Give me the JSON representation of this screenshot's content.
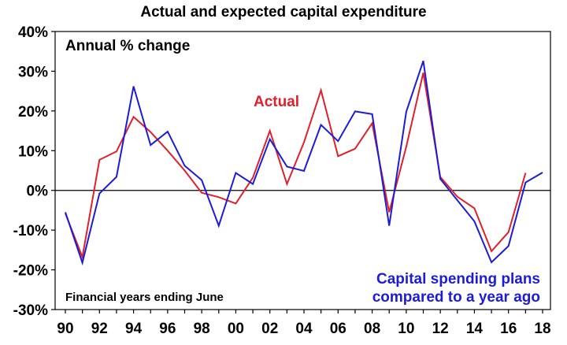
{
  "chart_data": {
    "type": "line",
    "title": "Actual and expected capital expenditure",
    "ylabel": "Annual % change",
    "note": "Financial years ending June",
    "ylim": [
      -30,
      40
    ],
    "yticks": [
      40,
      30,
      20,
      10,
      0,
      -10,
      -20,
      -30
    ],
    "ytick_labels": [
      "40%",
      "30%",
      "20%",
      "10%",
      "0%",
      "-10%",
      "-20%",
      "-30%"
    ],
    "xlim": [
      1990,
      2018
    ],
    "xticks": [
      1990,
      1992,
      1994,
      1996,
      1998,
      2000,
      2002,
      2004,
      2006,
      2008,
      2010,
      2012,
      2014,
      2016,
      2018
    ],
    "xtick_labels": [
      "90",
      "92",
      "94",
      "96",
      "98",
      "00",
      "02",
      "04",
      "06",
      "08",
      "10",
      "12",
      "14",
      "16",
      "18"
    ],
    "zero_line": true,
    "grid": false,
    "series": [
      {
        "name": "Actual",
        "color": "#e0202a",
        "label_lines": [
          "Actual"
        ],
        "x": [
          1990,
          1991,
          1992,
          1993,
          1994,
          1995,
          1996,
          1997,
          1998,
          1999,
          2000,
          2001,
          2002,
          2003,
          2004,
          2005,
          2006,
          2007,
          2008,
          2009,
          2010,
          2011,
          2012,
          2013,
          2014,
          2015,
          2016,
          2017
        ],
        "values": [
          -5.8,
          -16.8,
          7.7,
          9.8,
          18.5,
          14.7,
          10.0,
          5.0,
          -0.6,
          -1.7,
          -3.3,
          3.2,
          15.0,
          1.6,
          12.1,
          25.2,
          8.6,
          10.5,
          16.9,
          -5.5,
          11.0,
          29.6,
          3.4,
          -1.6,
          -4.5,
          -15.3,
          -10.5,
          4.4
        ]
      },
      {
        "name": "Capital spending plans compared to a year ago",
        "color": "#1c1cd6",
        "label_lines": [
          "Capital spending plans",
          "compared to a year ago"
        ],
        "x": [
          1990,
          1991,
          1992,
          1993,
          1994,
          1995,
          1996,
          1997,
          1998,
          1999,
          2000,
          2001,
          2002,
          2003,
          2004,
          2005,
          2006,
          2007,
          2008,
          2009,
          2010,
          2011,
          2012,
          2013,
          2014,
          2015,
          2016,
          2017,
          2018
        ],
        "values": [
          -5.5,
          -18.2,
          -0.8,
          3.4,
          26.2,
          11.4,
          14.8,
          6.2,
          2.6,
          -8.9,
          4.4,
          1.6,
          12.9,
          6.0,
          4.9,
          16.5,
          12.4,
          19.9,
          19.2,
          -8.9,
          19.8,
          32.6,
          2.9,
          -2.5,
          -7.8,
          -18.1,
          -14.0,
          2.0,
          4.5
        ]
      }
    ]
  }
}
